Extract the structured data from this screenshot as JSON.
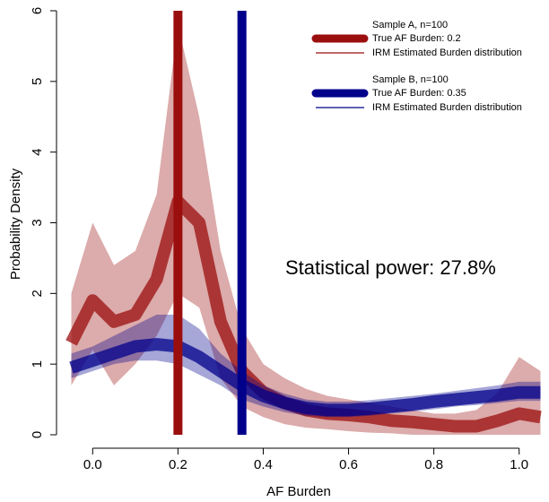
{
  "chart_data": {
    "type": "density",
    "x_label": "AF Burden",
    "y_label": "Probability Density",
    "annotation": "Statistical power: 27.8%",
    "xlim": [
      -0.07,
      1.07
    ],
    "xticks": [
      {
        "value": 0,
        "label": "0.0"
      },
      0.2,
      0.4,
      0.6,
      0.8,
      {
        "value": 1,
        "label": "1.0"
      }
    ],
    "ylim": [
      0,
      6
    ],
    "yticks": [
      0,
      1,
      2,
      3,
      4,
      5,
      6
    ],
    "x": [
      -0.05,
      0,
      0.05,
      0.1,
      0.15,
      0.2,
      0.25,
      0.3,
      0.35,
      0.4,
      0.45,
      0.5,
      0.55,
      0.6,
      0.65,
      0.7,
      0.75,
      0.8,
      0.85,
      0.9,
      0.95,
      1.0,
      1.05
    ],
    "samples": [
      {
        "title": "Sample A, n=100",
        "true_label": "True AF Burden: 0.2",
        "true_value": 0.2,
        "curve_label": "IRM Estimated Burden distribution",
        "color": "#9b0e0e",
        "values": [
          1.3,
          1.9,
          1.6,
          1.7,
          2.2,
          3.3,
          3.0,
          1.6,
          0.9,
          0.6,
          0.45,
          0.35,
          0.3,
          0.28,
          0.25,
          0.2,
          0.18,
          0.15,
          0.12,
          0.12,
          0.2,
          0.3,
          0.25
        ],
        "lower": [
          0.7,
          1.2,
          0.7,
          1.0,
          1.4,
          2.0,
          1.8,
          0.8,
          0.4,
          0.25,
          0.15,
          0.1,
          0.08,
          0.05,
          0.03,
          0.02,
          0,
          0,
          0,
          0,
          0,
          0,
          0
        ],
        "upper": [
          2.0,
          3.0,
          2.4,
          2.6,
          3.4,
          5.8,
          4.5,
          2.6,
          1.5,
          1.0,
          0.8,
          0.65,
          0.55,
          0.5,
          0.45,
          0.4,
          0.35,
          0.3,
          0.3,
          0.35,
          0.6,
          1.1,
          0.9
        ]
      },
      {
        "title": "Sample B, n=100",
        "true_label": "True AF Burden: 0.35",
        "true_value": 0.35,
        "curve_label": "IRM Estimated Burden distribution",
        "color": "#00008b",
        "values": [
          0.95,
          1.05,
          1.15,
          1.25,
          1.28,
          1.25,
          1.1,
          0.9,
          0.7,
          0.55,
          0.45,
          0.38,
          0.35,
          0.35,
          0.37,
          0.4,
          0.43,
          0.47,
          0.5,
          0.53,
          0.56,
          0.6,
          0.6
        ],
        "lower": [
          0.8,
          0.9,
          1.0,
          1.05,
          1.05,
          1.0,
          0.85,
          0.7,
          0.5,
          0.4,
          0.32,
          0.27,
          0.25,
          0.25,
          0.27,
          0.3,
          0.33,
          0.36,
          0.4,
          0.42,
          0.45,
          0.48,
          0.48
        ],
        "upper": [
          1.15,
          1.25,
          1.4,
          1.55,
          1.7,
          1.7,
          1.5,
          1.15,
          0.9,
          0.7,
          0.58,
          0.5,
          0.47,
          0.47,
          0.49,
          0.52,
          0.55,
          0.58,
          0.62,
          0.66,
          0.7,
          0.75,
          0.75
        ]
      }
    ]
  }
}
